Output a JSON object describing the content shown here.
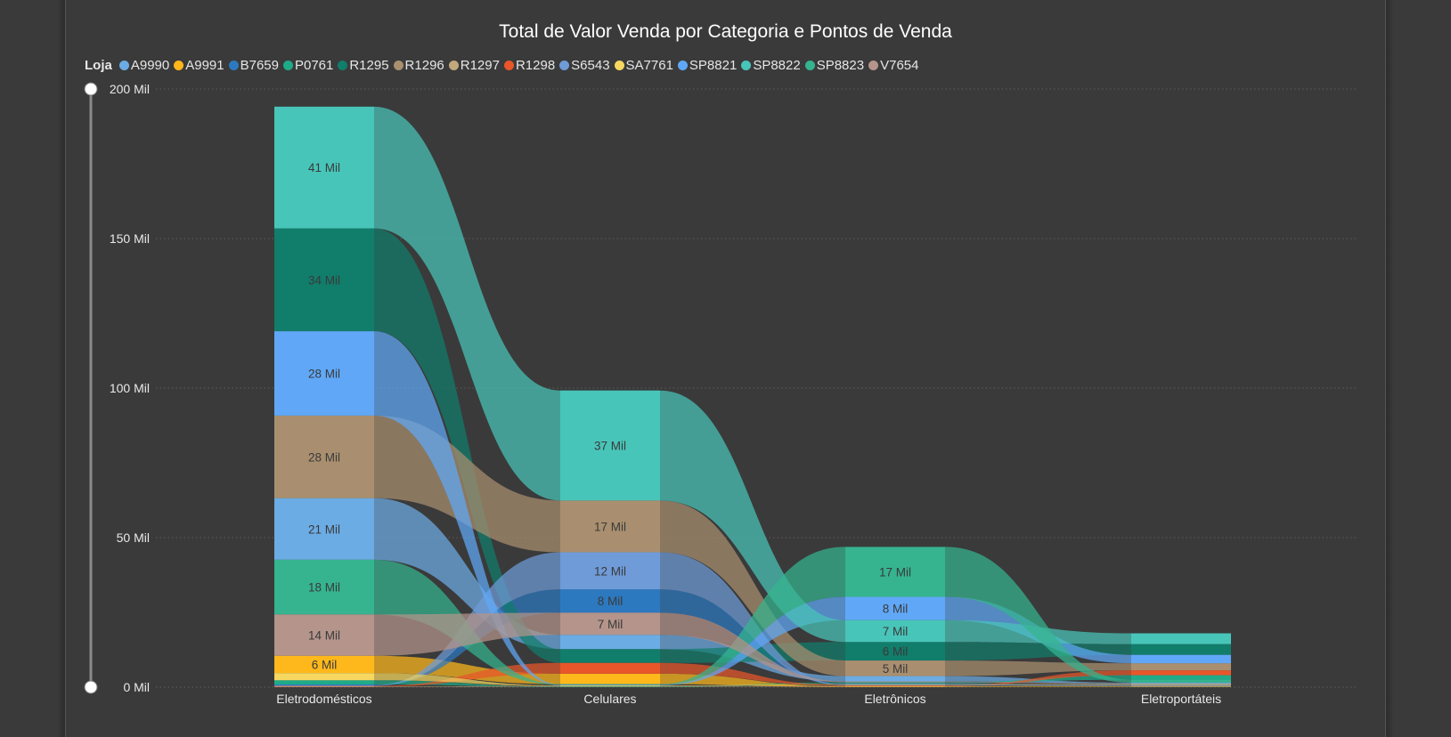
{
  "chart_data": {
    "type": "bar",
    "title": "Total de Valor Venda por Categoria e Pontos de Venda",
    "legend_title": "Loja",
    "legend_position": "top-left",
    "stacked": true,
    "ribbon": true,
    "ylim": [
      0,
      200000
    ],
    "yticks": [
      {
        "value": 0,
        "label": "0 Mil"
      },
      {
        "value": 50000,
        "label": "50 Mil"
      },
      {
        "value": 100000,
        "label": "100 Mil"
      },
      {
        "value": 150000,
        "label": "150 Mil"
      },
      {
        "value": 200000,
        "label": "200 Mil"
      }
    ],
    "grid": true,
    "categories": [
      "Eletrodomésticos",
      "Celulares",
      "Eletrônicos",
      "Eletroportáteis"
    ],
    "series": [
      {
        "name": "A9990",
        "color": "#6cace4",
        "values": [
          20600,
          4800,
          1800,
          300
        ]
      },
      {
        "name": "A9991",
        "color": "#ffb81c",
        "values": [
          5800,
          3500,
          200,
          200
        ]
      },
      {
        "name": "B7659",
        "color": "#2d79c0",
        "values": [
          300,
          7800,
          300,
          200
        ]
      },
      {
        "name": "P0761",
        "color": "#1fab89",
        "values": [
          1400,
          200,
          300,
          1500
        ]
      },
      {
        "name": "R1295",
        "color": "#117d6b",
        "values": [
          34400,
          4600,
          6200,
          3600
        ]
      },
      {
        "name": "R1296",
        "color": "#a98f6f",
        "values": [
          27600,
          17300,
          5200,
          2400
        ]
      },
      {
        "name": "R1297",
        "color": "#c2a97c",
        "values": [
          200,
          200,
          200,
          200
        ]
      },
      {
        "name": "R1298",
        "color": "#e8562a",
        "values": [
          200,
          3600,
          200,
          1600
        ]
      },
      {
        "name": "S6543",
        "color": "#6f9bd8",
        "values": [
          200,
          12400,
          200,
          200
        ]
      },
      {
        "name": "SA7761",
        "color": "#f6d860",
        "values": [
          2400,
          200,
          200,
          200
        ]
      },
      {
        "name": "SP8821",
        "color": "#60a8f7",
        "values": [
          28200,
          200,
          7800,
          2800
        ]
      },
      {
        "name": "SP8822",
        "color": "#48c5b9",
        "values": [
          40700,
          36800,
          7300,
          3600
        ]
      },
      {
        "name": "SP8823",
        "color": "#35b48f",
        "values": [
          18300,
          200,
          16700,
          1000
        ]
      },
      {
        "name": "V7654",
        "color": "#b4948b",
        "values": [
          13800,
          7400,
          300,
          200
        ]
      }
    ],
    "data_labels": [
      [
        "21 Mil",
        "6 Mil",
        "",
        "",
        "34 Mil",
        "28 Mil",
        "",
        "",
        "",
        "",
        "28 Mil",
        "41 Mil",
        "18 Mil",
        "14 Mil"
      ],
      [
        "",
        "",
        "8 Mil",
        "",
        "",
        "17 Mil",
        "",
        "",
        "12 Mil",
        "",
        "",
        "37 Mil",
        "",
        "7 Mil"
      ],
      [
        "",
        "",
        "",
        "",
        "6 Mil",
        "5 Mil",
        "",
        "",
        "",
        "",
        "8 Mil",
        "7 Mil",
        "17 Mil",
        ""
      ],
      [
        "",
        "",
        "",
        "",
        "",
        "",
        "",
        "",
        "",
        "",
        "",
        "",
        "",
        ""
      ]
    ]
  }
}
